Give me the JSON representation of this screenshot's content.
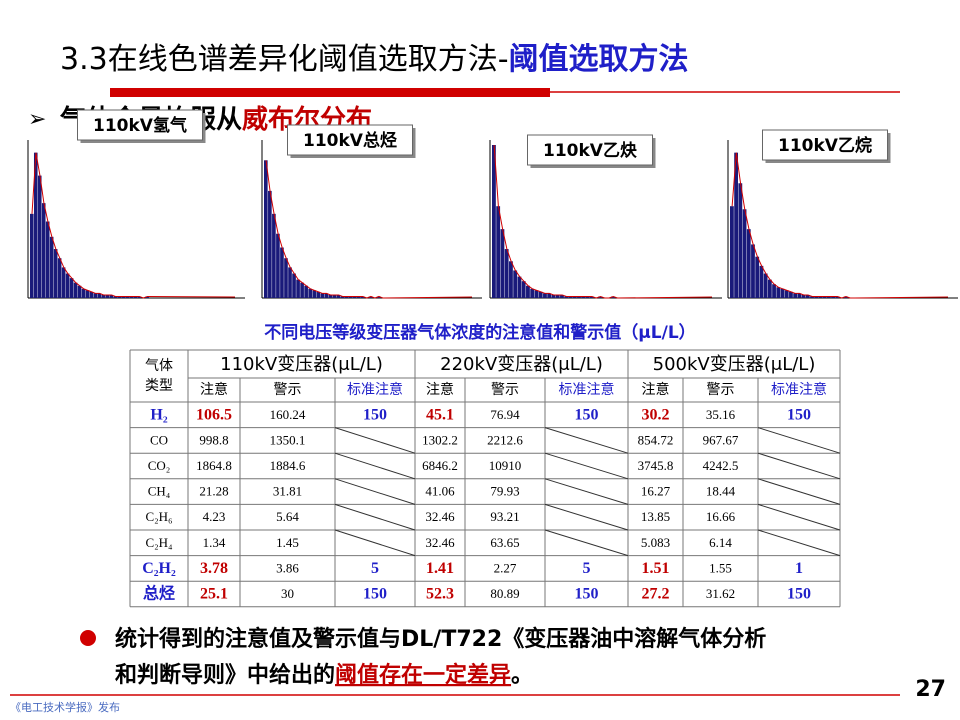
{
  "header": {
    "title_prefix": "3.3在线色谱差异化阈值选取方法-",
    "title_highlight": "阈值选取方法"
  },
  "bullet1": {
    "text": "气体含量均服从",
    "highlight": "威布尔分布"
  },
  "charts": [
    {
      "label": "110kV氢气",
      "ylim": [
        0,
        100
      ],
      "values": [
        55,
        95,
        80,
        62,
        50,
        40,
        32,
        26,
        20,
        16,
        13,
        10,
        8,
        6,
        5,
        4,
        3,
        3,
        2,
        2,
        2,
        1,
        1,
        1,
        1,
        1,
        1,
        1,
        0,
        1
      ]
    },
    {
      "label": "110kV总烃",
      "ylim": [
        0,
        100
      ],
      "values": [
        90,
        70,
        55,
        42,
        33,
        26,
        20,
        16,
        12,
        10,
        8,
        6,
        5,
        4,
        3,
        3,
        2,
        2,
        2,
        1,
        1,
        1,
        1,
        1,
        1,
        0,
        1,
        0,
        1,
        0
      ]
    },
    {
      "label": "110kV乙炔",
      "ylim": [
        0,
        100
      ],
      "values": [
        100,
        60,
        45,
        32,
        24,
        18,
        14,
        11,
        8,
        6,
        5,
        4,
        3,
        3,
        2,
        2,
        2,
        1,
        1,
        1,
        1,
        1,
        1,
        1,
        0,
        1,
        0,
        0,
        1,
        0
      ]
    },
    {
      "label": "110kV乙烷",
      "ylim": [
        0,
        100
      ],
      "values": [
        60,
        95,
        75,
        58,
        45,
        35,
        27,
        21,
        16,
        12,
        9,
        7,
        6,
        5,
        4,
        3,
        3,
        2,
        2,
        1,
        1,
        1,
        1,
        1,
        1,
        1,
        0,
        1,
        0,
        0
      ]
    }
  ],
  "table": {
    "caption": "不同电压等级变压器气体浓度的注意值和警示值（μL/L）",
    "gas_header": "气体类型",
    "groups": [
      "110kV变压器(μL/L)",
      "220kV变压器(μL/L)",
      "500kV变压器(μL/L)"
    ],
    "subheaders": [
      "注意",
      "警示",
      "标准注意",
      "注意",
      "警示",
      "标准注意",
      "注意",
      "警示",
      "标准注意"
    ],
    "rows": [
      [
        "H₂",
        "106.5",
        "160.24",
        "150",
        "45.1",
        "76.94",
        "150",
        "30.2",
        "35.16",
        "150"
      ],
      [
        "CO",
        "998.8",
        "1350.1",
        null,
        "1302.2",
        "2212.6",
        null,
        "854.72",
        "967.67",
        null
      ],
      [
        "CO₂",
        "1864.8",
        "1884.6",
        null,
        "6846.2",
        "10910",
        null,
        "3745.8",
        "4242.5",
        null
      ],
      [
        "CH₄",
        "21.28",
        "31.81",
        null,
        "41.06",
        "79.93",
        null,
        "16.27",
        "18.44",
        null
      ],
      [
        "C₂H₆",
        "4.23",
        "5.64",
        null,
        "32.46",
        "93.21",
        null,
        "13.85",
        "16.66",
        null
      ],
      [
        "C₂H₄",
        "1.34",
        "1.45",
        null,
        "32.46",
        "63.65",
        null,
        "5.083",
        "6.14",
        null
      ],
      [
        "C₂H₂",
        "3.78",
        "3.86",
        "5",
        "1.41",
        "2.27",
        "5",
        "1.51",
        "1.55",
        "1"
      ],
      [
        "总烃",
        "25.1",
        "30",
        "150",
        "52.3",
        "80.89",
        "150",
        "27.2",
        "31.62",
        "150"
      ]
    ]
  },
  "bullet2": {
    "line1": "统计得到的注意值及警示值与DL/T722《变压器油中溶解气体分析",
    "line2": "和判断导则》中给出的",
    "highlight": "阈值存在一定差异",
    "end": "。"
  },
  "footer": {
    "source": "《电工技术学报》发布",
    "page": "27"
  }
}
